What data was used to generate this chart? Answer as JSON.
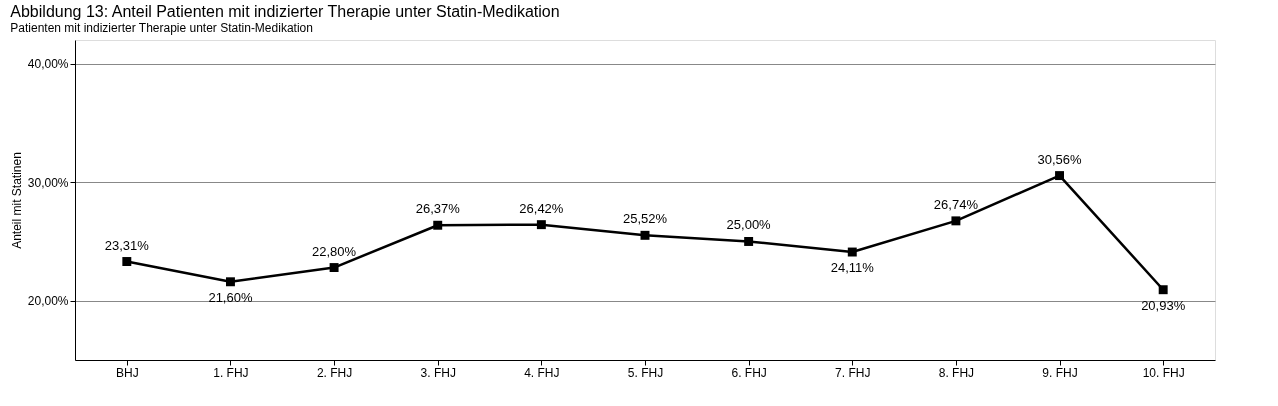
{
  "chart_data": {
    "type": "line",
    "title": "Abbildung 13: Anteil Patienten mit indizierter Therapie unter Statin-Medikation",
    "subtitle": "Patienten mit indizierter Therapie unter Statin-Medikation",
    "ylabel": "Anteil mit Statinen",
    "categories": [
      "BHJ",
      "1. FHJ",
      "2. FHJ",
      "3. FHJ",
      "4. FHJ",
      "5. FHJ",
      "6. FHJ",
      "7. FHJ",
      "8. FHJ",
      "9. FHJ",
      "10. FHJ"
    ],
    "series": [
      {
        "color": "#000000",
        "values": [
          23.31,
          21.6,
          22.8,
          26.37,
          26.42,
          25.52,
          25.0,
          24.11,
          26.74,
          30.56,
          20.93
        ],
        "value_labels": [
          "23,31%",
          "21,60%",
          "22,80%",
          "26,37%",
          "26,42%",
          "25,52%",
          "25,00%",
          "24,11%",
          "26,74%",
          "30,56%",
          "20,93%"
        ]
      }
    ],
    "ylim": [
      15,
      42
    ],
    "yticks": [
      {
        "value": 20,
        "label": "20,00%"
      },
      {
        "value": 30,
        "label": "30,00%"
      },
      {
        "value": 40,
        "label": "40,00%"
      }
    ],
    "grid": "y",
    "marker": "square",
    "line_style": "solid"
  }
}
